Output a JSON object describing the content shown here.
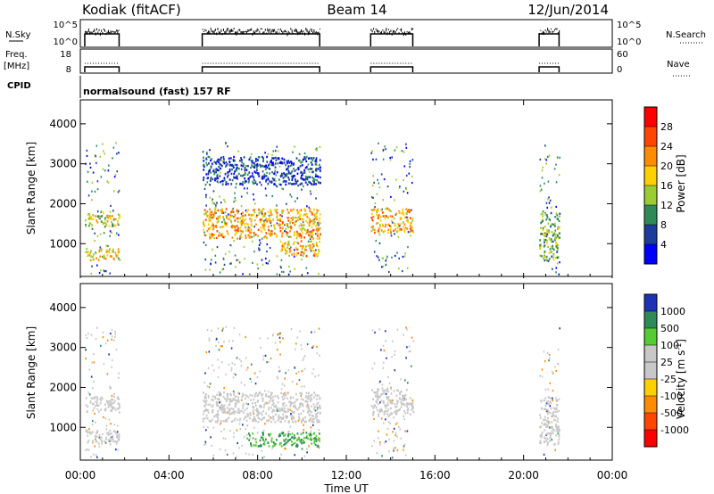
{
  "header": {
    "station": "Kodiak (fitACF)",
    "beam": "Beam 14",
    "date": "12/Jun/2014"
  },
  "param_panels": {
    "nsky_label": "N.Sky",
    "nsky_ticks": [
      "10^5",
      "10^0"
    ],
    "nsearch_label": "N.Search",
    "nsearch_ticks": [
      "10^5",
      "10^0"
    ],
    "freq_label": "Freq.",
    "freq_unit": "[MHz]",
    "freq_ticks": [
      "18",
      "8"
    ],
    "nave_label": "Nave",
    "nave_ticks": [
      "60",
      "0"
    ],
    "cpid_label": "CPID",
    "cpid_text": "normalsound (fast) 157 RF"
  },
  "x_axis": {
    "label": "Time UT",
    "ticks": [
      "00:00",
      "04:00",
      "08:00",
      "12:00",
      "16:00",
      "20:00",
      "00:00"
    ]
  },
  "active_intervals_hours": [
    [
      0.2,
      1.75
    ],
    [
      5.5,
      10.8
    ],
    [
      13.1,
      15.0
    ],
    [
      20.7,
      21.6
    ]
  ],
  "power_colorbar": {
    "label": "Power [dB]",
    "ticks": [
      "28",
      "24",
      "20",
      "16",
      "12",
      "8",
      "4"
    ],
    "colors": [
      "#ff0000",
      "#ff4500",
      "#ff8c00",
      "#ffd000",
      "#9acd32",
      "#2e8b57",
      "#1e3c9b",
      "#0000ff"
    ]
  },
  "velocity_colorbar": {
    "label": "Velocity [m s^-1]",
    "ticks": [
      "1000",
      "500",
      "100",
      "25",
      "-25",
      "-100",
      "-500",
      "-1000"
    ],
    "colors": [
      "#1e32b4",
      "#2e8b57",
      "#55cc33",
      "#c8c8c8",
      "#c8c8c8",
      "#ffd000",
      "#ff8c00",
      "#ff4500",
      "#ff0000"
    ]
  },
  "chart_data": [
    {
      "type": "heatmap",
      "title": "",
      "xlabel": "Time UT",
      "ylabel": "Slant Range [km]",
      "xlim_hours": [
        0,
        24
      ],
      "ylim": [
        180,
        4600
      ],
      "yticks": [
        1000,
        2000,
        3000,
        4000
      ],
      "colorbar_label": "Power [dB]",
      "regions": [
        {
          "t": [
            0.2,
            1.75
          ],
          "range": [
            1450,
            1800
          ],
          "value": 16
        },
        {
          "t": [
            0.2,
            1.75
          ],
          "range": [
            600,
            900
          ],
          "value": 18
        },
        {
          "t": [
            5.5,
            10.8
          ],
          "range": [
            1150,
            1900
          ],
          "value": 20
        },
        {
          "t": [
            9.0,
            10.8
          ],
          "range": [
            700,
            1100
          ],
          "value": 20
        },
        {
          "t": [
            5.5,
            10.8
          ],
          "range": [
            2500,
            3200
          ],
          "value": 6
        },
        {
          "t": [
            13.1,
            15.0
          ],
          "range": [
            1300,
            1900
          ],
          "value": 20
        },
        {
          "t": [
            20.7,
            21.6
          ],
          "range": [
            600,
            1800
          ],
          "value": 12
        }
      ]
    },
    {
      "type": "heatmap",
      "title": "",
      "xlabel": "Time UT",
      "ylabel": "Slant Range [km]",
      "xlim_hours": [
        0,
        24
      ],
      "ylim": [
        180,
        4600
      ],
      "yticks": [
        1000,
        2000,
        3000,
        4000
      ],
      "colorbar_label": "Velocity [m s^-1]",
      "regions": [
        {
          "t": [
            0.2,
            1.75
          ],
          "range": [
            1400,
            1800
          ],
          "value": 0
        },
        {
          "t": [
            0.2,
            1.75
          ],
          "range": [
            600,
            950
          ],
          "value": 0
        },
        {
          "t": [
            5.5,
            10.8
          ],
          "range": [
            1150,
            1900
          ],
          "value": 0
        },
        {
          "t": [
            7.5,
            10.8
          ],
          "range": [
            550,
            900
          ],
          "value": 100
        },
        {
          "t": [
            13.1,
            15.0
          ],
          "range": [
            1300,
            2000
          ],
          "value": 0
        },
        {
          "t": [
            20.7,
            21.6
          ],
          "range": [
            600,
            1800
          ],
          "value": 0
        }
      ]
    }
  ]
}
